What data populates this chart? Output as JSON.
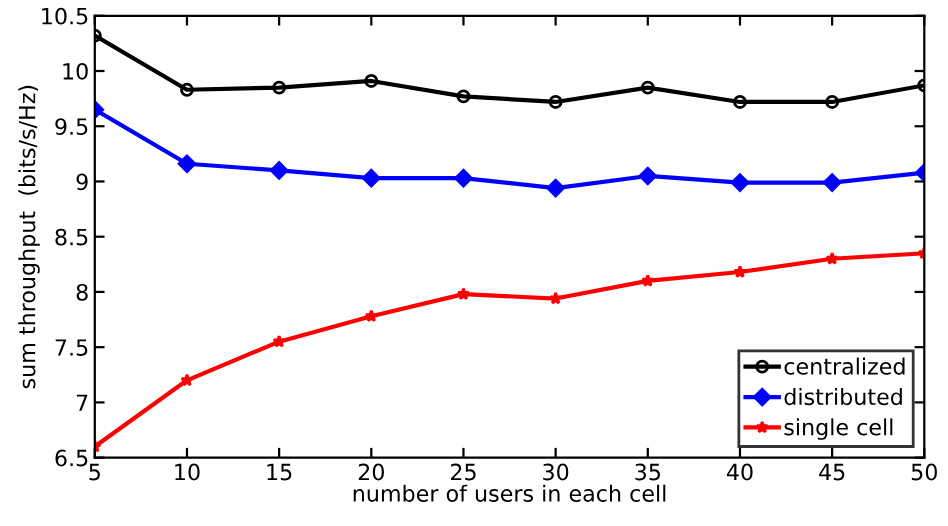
{
  "chart_data": {
    "type": "line",
    "xlabel": "number of users in each cell",
    "ylabel": "sum throughput  (bits/s/Hz)",
    "x": [
      5,
      10,
      15,
      20,
      25,
      30,
      35,
      40,
      45,
      50
    ],
    "series": [
      {
        "name": "centralized",
        "color": "#000000",
        "marker": "circle",
        "values": [
          10.32,
          9.83,
          9.85,
          9.91,
          9.77,
          9.72,
          9.85,
          9.72,
          9.72,
          9.87
        ]
      },
      {
        "name": "distributed",
        "color": "#0000ff",
        "marker": "diamond",
        "values": [
          9.65,
          9.16,
          9.1,
          9.03,
          9.03,
          8.94,
          9.05,
          8.99,
          8.99,
          9.08
        ]
      },
      {
        "name": "single cell",
        "color": "#ff0000",
        "marker": "star",
        "values": [
          6.6,
          7.2,
          7.55,
          7.78,
          7.98,
          7.94,
          8.1,
          8.18,
          8.3,
          8.35
        ]
      }
    ],
    "xlim": [
      5,
      50
    ],
    "xticks": [
      5,
      10,
      15,
      20,
      25,
      30,
      35,
      40,
      45,
      50
    ],
    "ylim": [
      6.5,
      10.5
    ],
    "yticks": [
      6.5,
      7,
      7.5,
      8,
      8.5,
      9,
      9.5,
      10,
      10.5
    ],
    "grid": false,
    "legend": "lower right",
    "line_style": "solid"
  }
}
